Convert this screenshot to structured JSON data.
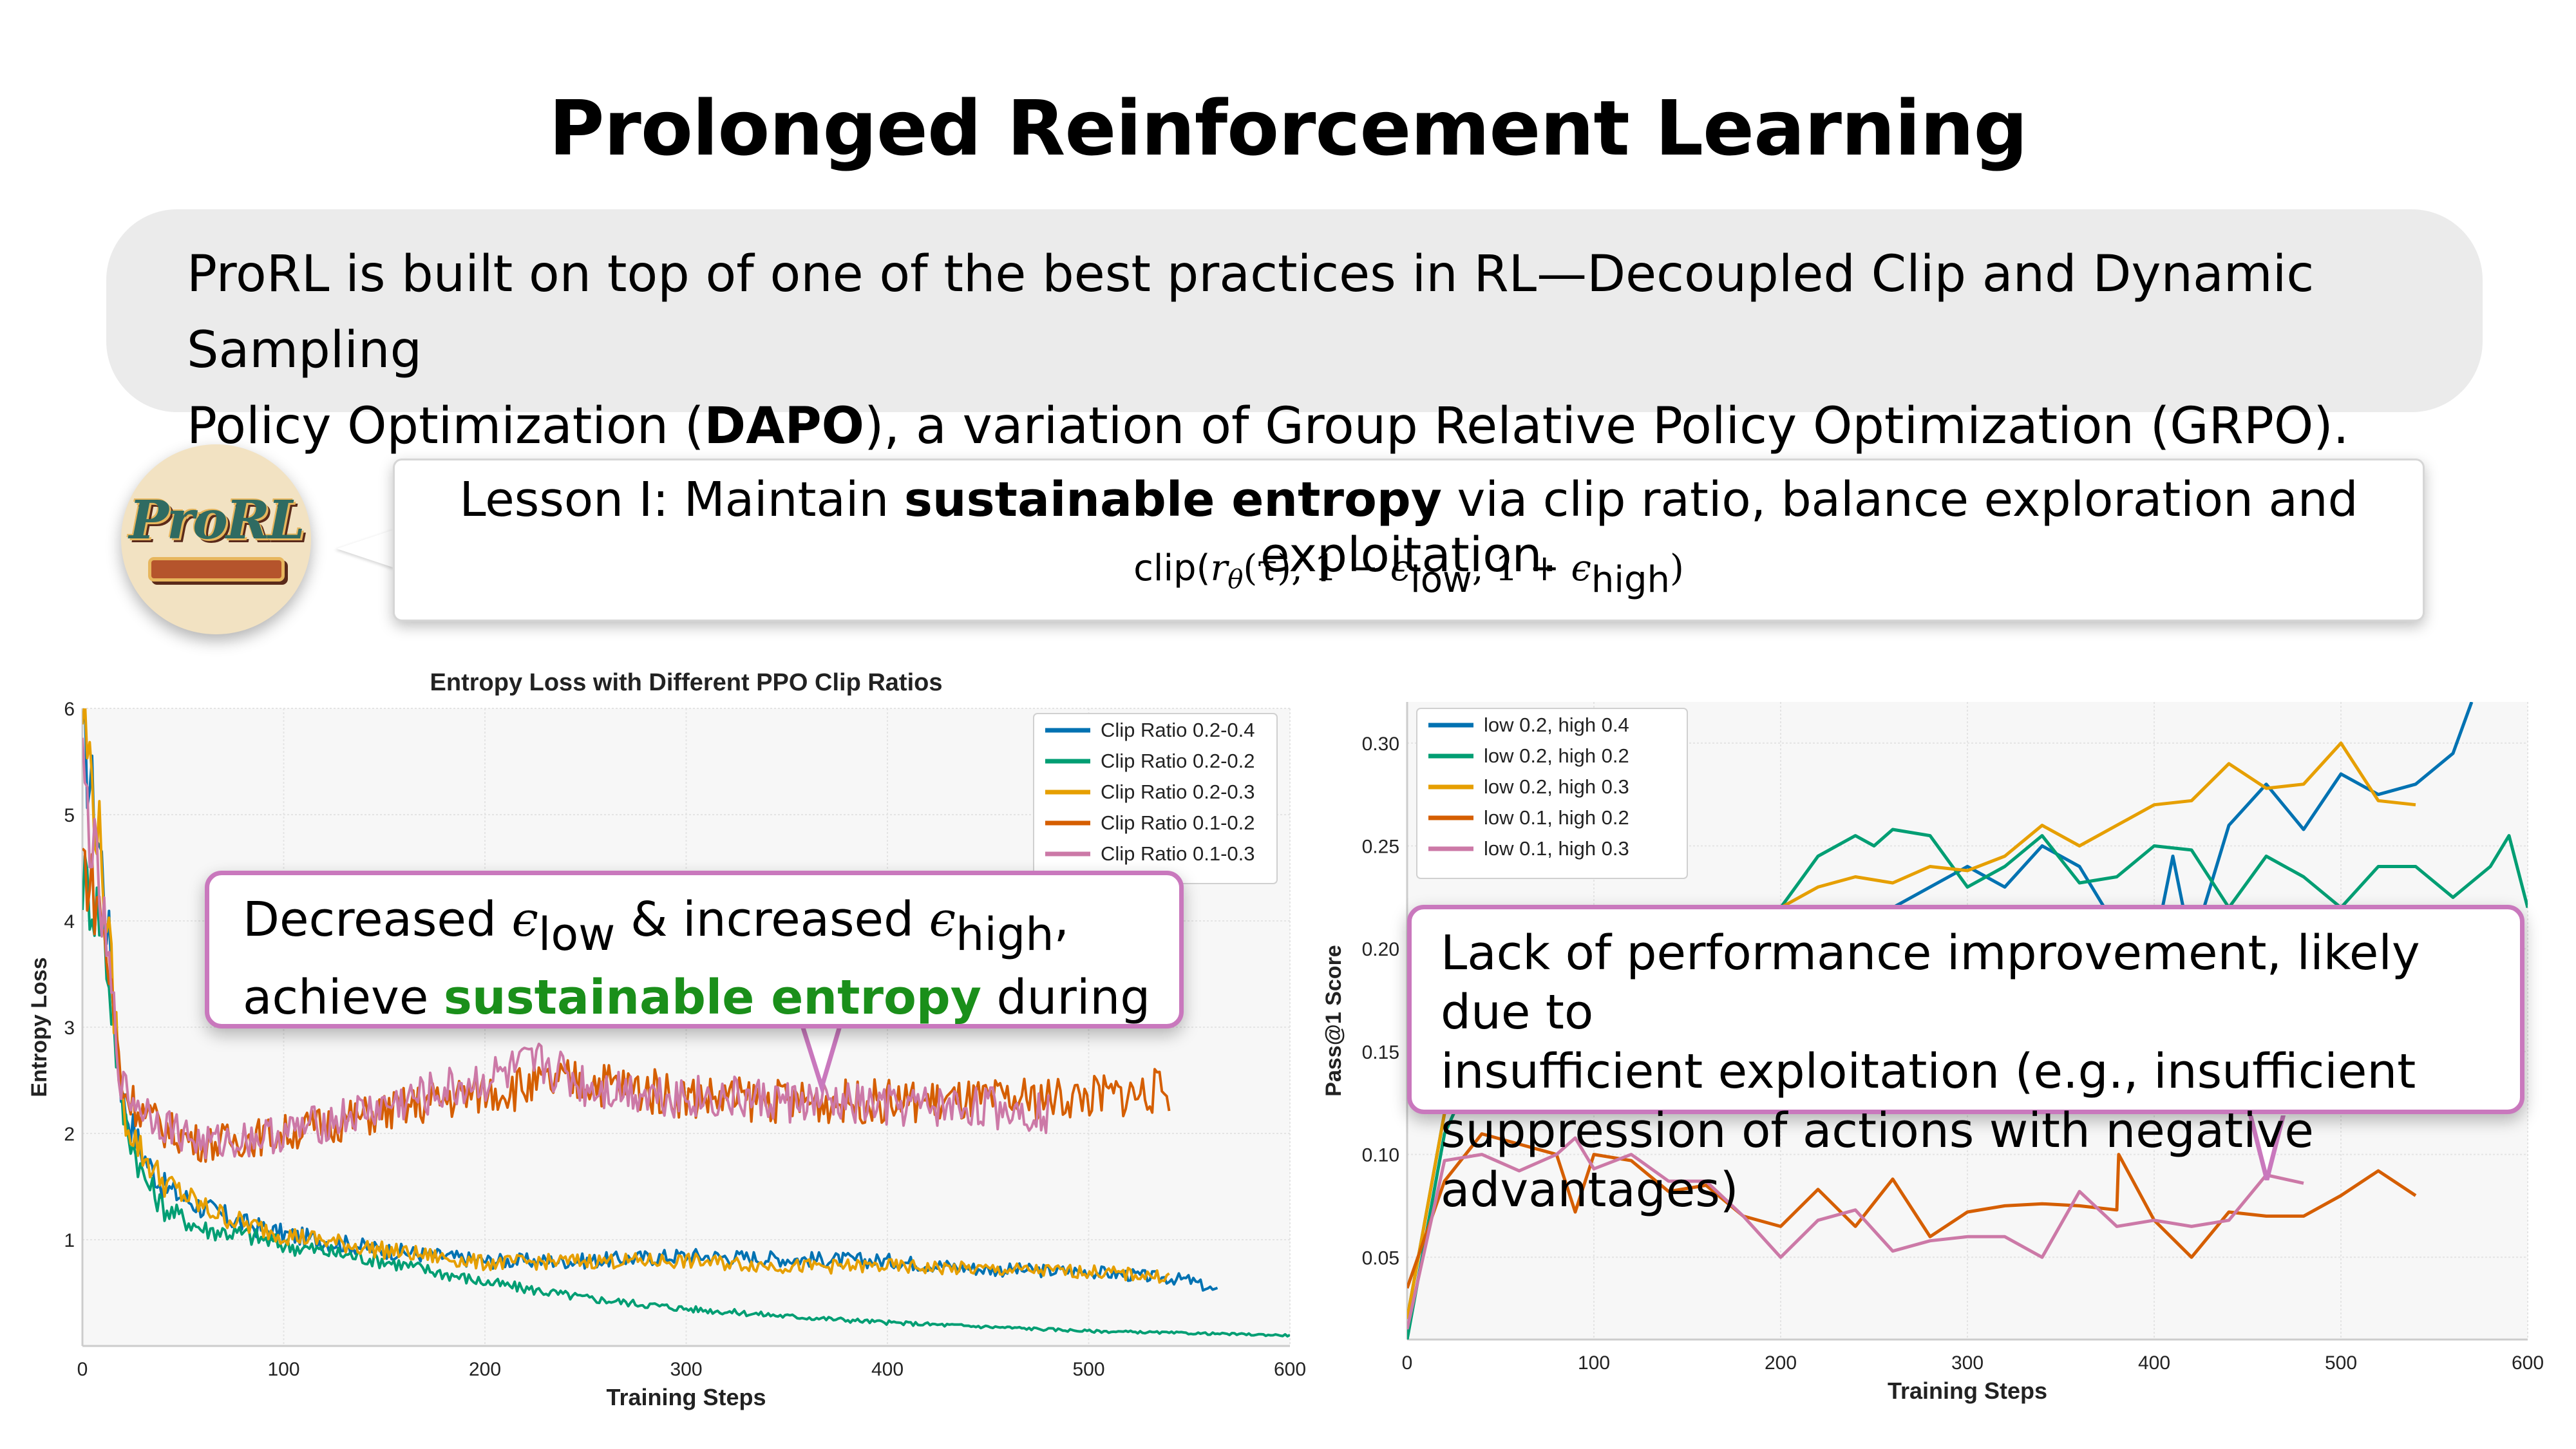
{
  "title": "Prolonged Reinforcement Learning",
  "intro": {
    "line1": "ProRL is built on top of one of the best practices in RL—Decoupled Clip and Dynamic Sampling",
    "line2_pre": "Policy Optimization (",
    "line2_bold": "DAPO",
    "line2_post": "), a variation of Group Relative Policy Optimization (GRPO)."
  },
  "logo": {
    "text": "ProRL",
    "icon": "prorl-logo"
  },
  "lesson": {
    "pre": "Lesson I: Maintain ",
    "bold": "sustainable entropy",
    "post": " via clip ratio, balance exploration and exploitation.",
    "formula": {
      "fn": "clip(",
      "r": "r",
      "theta": "θ",
      "tau": "(τ), 1 − ",
      "eps": "ϵ",
      "low": "low",
      "mid": ", 1 + ",
      "high": "high",
      "close": ")"
    }
  },
  "left_callout": {
    "l1_a": "Decreased ",
    "eps": "ϵ",
    "low": "low",
    "l1_b": " & increased ",
    "high": "high",
    "l1_c": ",",
    "l2_a": "achieve ",
    "l2_green": "sustainable entropy",
    "l2_b": " during"
  },
  "right_callout": {
    "l1": "Lack of performance improvement, likely due to",
    "l2": "insufficient exploitation (e.g., insufficient",
    "l3": "suppression of actions with negative advantages)"
  },
  "colors": {
    "blue": "#0072b2",
    "green": "#009e73",
    "gold": "#e69f00",
    "orange": "#d55e00",
    "pink": "#cc79a7",
    "callout_border": "#c978bd",
    "highlight_green": "#1a8f1a"
  },
  "chart_data": [
    {
      "type": "line",
      "title": "Entropy Loss with Different PPO Clip Ratios",
      "xlabel": "Training Steps",
      "ylabel": "Entropy Loss",
      "xlim": [
        0,
        600
      ],
      "ylim": [
        0,
        6
      ],
      "xticks": [
        "0",
        "100",
        "200",
        "300",
        "400",
        "500",
        "600"
      ],
      "yticks": [
        "1",
        "2",
        "3",
        "4",
        "5",
        "6"
      ],
      "grid": true,
      "legend_position": "upper right",
      "series": [
        {
          "name": "Clip Ratio 0.2-0.4",
          "color": "#0072b2",
          "x": [
            0,
            10,
            20,
            30,
            40,
            60,
            80,
            100,
            150,
            200,
            250,
            300,
            350,
            400,
            450,
            500,
            550,
            565
          ],
          "y": [
            5.8,
            4.5,
            2.3,
            1.8,
            1.5,
            1.3,
            1.15,
            1.05,
            0.9,
            0.8,
            0.8,
            0.85,
            0.82,
            0.8,
            0.72,
            0.7,
            0.62,
            0.5
          ]
        },
        {
          "name": "Clip Ratio 0.2-0.2",
          "color": "#009e73",
          "x": [
            0,
            10,
            20,
            30,
            40,
            60,
            80,
            100,
            150,
            200,
            250,
            300,
            350,
            400,
            450,
            500,
            550,
            600
          ],
          "y": [
            4.4,
            4.0,
            2.2,
            1.6,
            1.3,
            1.1,
            1.05,
            0.95,
            0.8,
            0.6,
            0.45,
            0.35,
            0.28,
            0.22,
            0.18,
            0.14,
            0.12,
            0.1
          ]
        },
        {
          "name": "Clip Ratio 0.2-0.3",
          "color": "#e69f00",
          "x": [
            0,
            10,
            20,
            30,
            40,
            60,
            80,
            100,
            150,
            200,
            250,
            300,
            350,
            400,
            450,
            500,
            540
          ],
          "y": [
            6.0,
            4.5,
            2.2,
            1.8,
            1.55,
            1.3,
            1.15,
            1.05,
            0.9,
            0.78,
            0.8,
            0.8,
            0.75,
            0.75,
            0.72,
            0.7,
            0.65
          ]
        },
        {
          "name": "Clip Ratio 0.1-0.2",
          "color": "#d55e00",
          "x": [
            0,
            10,
            20,
            30,
            40,
            60,
            80,
            100,
            150,
            200,
            250,
            300,
            350,
            400,
            450,
            500,
            540
          ],
          "y": [
            4.6,
            4.0,
            2.4,
            2.2,
            2.05,
            1.9,
            1.95,
            2.0,
            2.2,
            2.4,
            2.5,
            2.35,
            2.3,
            2.3,
            2.3,
            2.35,
            2.4
          ]
        },
        {
          "name": "Clip Ratio 0.1-0.3",
          "color": "#cc79a7",
          "x": [
            0,
            10,
            20,
            30,
            40,
            60,
            80,
            100,
            150,
            200,
            230,
            250,
            300,
            350,
            400,
            450,
            480
          ],
          "y": [
            5.4,
            4.0,
            2.4,
            2.25,
            2.1,
            1.9,
            1.95,
            2.0,
            2.25,
            2.5,
            2.65,
            2.45,
            2.35,
            2.3,
            2.25,
            2.25,
            2.2
          ]
        }
      ]
    },
    {
      "type": "line",
      "title": "",
      "xlabel": "Training Steps",
      "ylabel": "Pass@1 Score",
      "xlim": [
        0,
        600
      ],
      "ylim": [
        0.01,
        0.32
      ],
      "xticks": [
        "0",
        "100",
        "200",
        "300",
        "400",
        "500",
        "600"
      ],
      "yticks": [
        "0.05",
        "0.10",
        "0.15",
        "0.20",
        "0.25",
        "0.30"
      ],
      "grid": true,
      "legend_position": "upper left",
      "series": [
        {
          "name": "low 0.2, high 0.4",
          "color": "#0072b2",
          "x": [
            0,
            20,
            40,
            60,
            80,
            100,
            120,
            140,
            160,
            180,
            200,
            220,
            240,
            260,
            280,
            300,
            320,
            340,
            360,
            380,
            400,
            410,
            420,
            440,
            460,
            480,
            500,
            520,
            540,
            560,
            570
          ],
          "y": [
            0.02,
            0.12,
            0.15,
            0.17,
            0.19,
            0.2,
            0.21,
            0.22,
            0.22,
            0.22,
            0.21,
            0.22,
            0.2,
            0.22,
            0.23,
            0.24,
            0.23,
            0.25,
            0.24,
            0.21,
            0.2,
            0.245,
            0.2,
            0.26,
            0.28,
            0.258,
            0.285,
            0.275,
            0.28,
            0.295,
            0.32
          ]
        },
        {
          "name": "low 0.2, high 0.2",
          "color": "#009e73",
          "x": [
            0,
            20,
            40,
            60,
            80,
            100,
            120,
            140,
            160,
            180,
            200,
            220,
            240,
            250,
            260,
            280,
            300,
            320,
            340,
            360,
            380,
            400,
            420,
            440,
            460,
            480,
            500,
            520,
            540,
            560,
            580,
            590,
            600
          ],
          "y": [
            0.01,
            0.11,
            0.15,
            0.17,
            0.19,
            0.2,
            0.21,
            0.21,
            0.22,
            0.21,
            0.22,
            0.245,
            0.255,
            0.25,
            0.258,
            0.255,
            0.23,
            0.24,
            0.255,
            0.232,
            0.235,
            0.25,
            0.248,
            0.22,
            0.245,
            0.235,
            0.22,
            0.24,
            0.24,
            0.225,
            0.24,
            0.255,
            0.22
          ]
        },
        {
          "name": "low 0.2, high 0.3",
          "color": "#e69f00",
          "x": [
            0,
            20,
            40,
            60,
            80,
            100,
            120,
            140,
            160,
            180,
            200,
            220,
            240,
            260,
            280,
            300,
            320,
            340,
            360,
            380,
            400,
            420,
            440,
            460,
            480,
            500,
            520,
            540
          ],
          "y": [
            0.02,
            0.12,
            0.15,
            0.17,
            0.19,
            0.2,
            0.21,
            0.21,
            0.22,
            0.21,
            0.22,
            0.23,
            0.235,
            0.232,
            0.24,
            0.238,
            0.245,
            0.26,
            0.25,
            0.26,
            0.27,
            0.272,
            0.29,
            0.278,
            0.28,
            0.3,
            0.272,
            0.27
          ]
        },
        {
          "name": "low 0.1, high 0.2",
          "color": "#d55e00",
          "x": [
            0,
            20,
            40,
            60,
            80,
            90,
            100,
            120,
            140,
            160,
            180,
            200,
            220,
            240,
            260,
            280,
            300,
            320,
            340,
            360,
            380,
            381,
            400,
            420,
            440,
            460,
            480,
            500,
            520,
            540
          ],
          "y": [
            0.035,
            0.087,
            0.11,
            0.105,
            0.1,
            0.072,
            0.1,
            0.097,
            0.082,
            0.085,
            0.07,
            0.065,
            0.083,
            0.065,
            0.088,
            0.06,
            0.072,
            0.075,
            0.076,
            0.075,
            0.073,
            0.1,
            0.068,
            0.05,
            0.072,
            0.07,
            0.07,
            0.08,
            0.092,
            0.08
          ]
        },
        {
          "name": "low 0.1, high 0.3",
          "color": "#cc79a7",
          "x": [
            0,
            20,
            40,
            60,
            80,
            90,
            100,
            120,
            140,
            160,
            180,
            200,
            220,
            240,
            260,
            280,
            300,
            320,
            340,
            360,
            380,
            400,
            420,
            440,
            460,
            480
          ],
          "y": [
            0.015,
            0.097,
            0.1,
            0.092,
            0.1,
            0.108,
            0.093,
            0.1,
            0.087,
            0.087,
            0.07,
            0.05,
            0.068,
            0.073,
            0.053,
            0.058,
            0.06,
            0.06,
            0.05,
            0.082,
            0.065,
            0.068,
            0.065,
            0.068,
            0.09,
            0.086
          ]
        }
      ]
    }
  ]
}
